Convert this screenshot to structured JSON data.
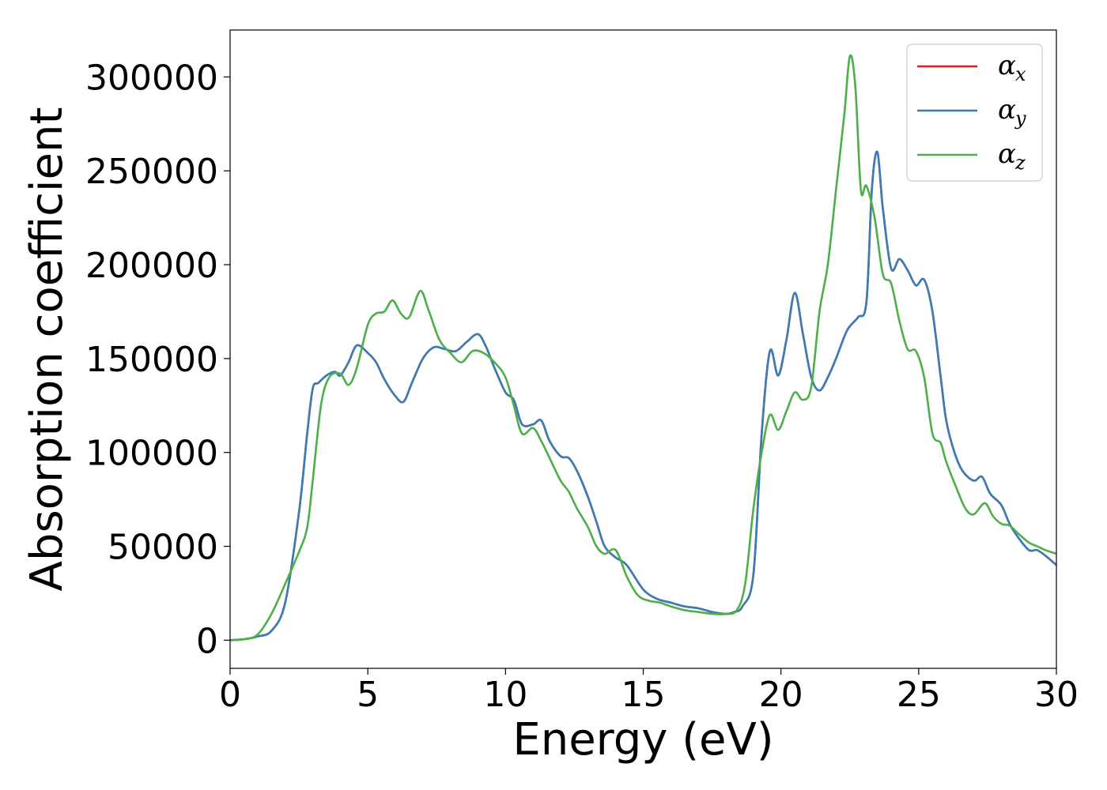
{
  "chart_data": {
    "type": "line",
    "title": "",
    "xlabel": "Energy (eV)",
    "ylabel": "Absorption coefficient",
    "xlim": [
      0,
      30
    ],
    "ylim": [
      -15000,
      325000
    ],
    "xticks": [
      0,
      5,
      10,
      15,
      20,
      25,
      30
    ],
    "xtick_labels": [
      "0",
      "5",
      "10",
      "15",
      "20",
      "25",
      "30"
    ],
    "yticks": [
      0,
      50000,
      100000,
      150000,
      200000,
      250000,
      300000
    ],
    "ytick_labels": [
      "0",
      "50000",
      "100000",
      "150000",
      "200000",
      "250000",
      "300000"
    ],
    "grid": false,
    "legend_position": "top-right",
    "series": [
      {
        "name": "α_x",
        "legend_base": "α",
        "legend_sub": "x",
        "color": "#e41a1c",
        "x": [
          0,
          0.5,
          1,
          1.5,
          2,
          2.5,
          2.8,
          3,
          3.2,
          3.5,
          3.8,
          4,
          4.3,
          4.6,
          5,
          5.3,
          5.6,
          6,
          6.3,
          6.6,
          7,
          7.4,
          7.8,
          8.2,
          8.6,
          9,
          9.3,
          9.6,
          10,
          10.3,
          10.6,
          11,
          11.3,
          11.6,
          12,
          12.3,
          12.6,
          13,
          13.3,
          13.6,
          14,
          14.4,
          15,
          15.5,
          16,
          16.5,
          17,
          17.5,
          18,
          18.3,
          18.6,
          19,
          19.3,
          19.6,
          19.9,
          20.2,
          20.5,
          20.8,
          21.1,
          21.4,
          21.7,
          22,
          22.4,
          22.8,
          23.1,
          23.3,
          23.5,
          23.7,
          24,
          24.3,
          24.6,
          24.9,
          25.2,
          25.5,
          25.8,
          26,
          26.3,
          26.6,
          27,
          27.3,
          27.6,
          28,
          28.3,
          28.6,
          29,
          29.3,
          29.6,
          30
        ],
        "y": [
          0,
          500,
          2000,
          5000,
          20000,
          68000,
          110000,
          134000,
          137000,
          141000,
          143000,
          141000,
          148000,
          157000,
          153000,
          148000,
          139000,
          130000,
          127000,
          137000,
          150000,
          156000,
          155000,
          154000,
          159000,
          163000,
          156000,
          145000,
          132000,
          128000,
          115000,
          115000,
          117000,
          106000,
          98000,
          97000,
          90000,
          76000,
          63000,
          50000,
          44000,
          40000,
          27000,
          22000,
          20000,
          18000,
          17000,
          15000,
          14000,
          15000,
          18000,
          35000,
          110000,
          154000,
          141000,
          160000,
          185000,
          163000,
          140000,
          133000,
          140000,
          150000,
          165000,
          172000,
          180000,
          240000,
          260000,
          230000,
          198000,
          203000,
          197000,
          189000,
          192000,
          175000,
          140000,
          117000,
          100000,
          90000,
          85000,
          87000,
          78000,
          72000,
          62000,
          55000,
          48000,
          48000,
          45000,
          40000
        ]
      },
      {
        "name": "α_y",
        "legend_base": "α",
        "legend_sub": "y",
        "color": "#377eb8",
        "x": [
          0,
          0.5,
          1,
          1.5,
          2,
          2.5,
          2.8,
          3,
          3.2,
          3.5,
          3.8,
          4,
          4.3,
          4.6,
          5,
          5.3,
          5.6,
          6,
          6.3,
          6.6,
          7,
          7.4,
          7.8,
          8.2,
          8.6,
          9,
          9.3,
          9.6,
          10,
          10.3,
          10.6,
          11,
          11.3,
          11.6,
          12,
          12.3,
          12.6,
          13,
          13.3,
          13.6,
          14,
          14.4,
          15,
          15.5,
          16,
          16.5,
          17,
          17.5,
          18,
          18.3,
          18.6,
          19,
          19.3,
          19.6,
          19.9,
          20.2,
          20.5,
          20.8,
          21.1,
          21.4,
          21.7,
          22,
          22.4,
          22.8,
          23.1,
          23.3,
          23.5,
          23.7,
          24,
          24.3,
          24.6,
          24.9,
          25.2,
          25.5,
          25.8,
          26,
          26.3,
          26.6,
          27,
          27.3,
          27.6,
          28,
          28.3,
          28.6,
          29,
          29.3,
          29.6,
          30
        ],
        "y": [
          0,
          500,
          2000,
          5000,
          20000,
          68000,
          110000,
          134000,
          137000,
          141000,
          143000,
          141000,
          148000,
          157000,
          153000,
          148000,
          139000,
          130000,
          127000,
          137000,
          150000,
          156000,
          155000,
          154000,
          159000,
          163000,
          156000,
          145000,
          132000,
          128000,
          115000,
          115000,
          117000,
          106000,
          98000,
          97000,
          90000,
          76000,
          63000,
          50000,
          44000,
          40000,
          27000,
          22000,
          20000,
          18000,
          17000,
          15000,
          14000,
          15000,
          18000,
          35000,
          110000,
          154000,
          141000,
          160000,
          185000,
          163000,
          140000,
          133000,
          140000,
          150000,
          165000,
          172000,
          180000,
          240000,
          260000,
          230000,
          198000,
          203000,
          197000,
          189000,
          192000,
          175000,
          140000,
          117000,
          100000,
          90000,
          85000,
          87000,
          78000,
          72000,
          62000,
          55000,
          48000,
          48000,
          45000,
          40000
        ]
      },
      {
        "name": "α_z",
        "legend_base": "α",
        "legend_sub": "z",
        "color": "#4daf4a",
        "x": [
          0,
          0.5,
          1,
          1.5,
          2,
          2.5,
          2.8,
          3,
          3.3,
          3.6,
          4,
          4.3,
          4.6,
          5,
          5.3,
          5.6,
          5.9,
          6.2,
          6.5,
          6.9,
          7.2,
          7.6,
          8,
          8.4,
          8.8,
          9.2,
          9.6,
          10,
          10.3,
          10.6,
          11,
          11.3,
          11.6,
          12,
          12.3,
          12.6,
          13,
          13.3,
          13.6,
          14,
          14.4,
          14.8,
          15.2,
          15.6,
          16,
          16.5,
          17,
          17.5,
          18,
          18.4,
          18.7,
          19,
          19.3,
          19.6,
          19.9,
          20.2,
          20.5,
          20.8,
          21.1,
          21.4,
          21.7,
          22,
          22.3,
          22.5,
          22.7,
          22.9,
          23.1,
          23.4,
          23.7,
          24,
          24.3,
          24.6,
          24.9,
          25.2,
          25.5,
          25.8,
          26,
          26.4,
          26.7,
          27,
          27.4,
          27.7,
          28,
          28.3,
          28.6,
          29,
          29.3,
          29.6,
          30
        ],
        "y": [
          0,
          500,
          3000,
          14000,
          30000,
          47000,
          60000,
          85000,
          125000,
          140000,
          142000,
          136000,
          145000,
          168000,
          174000,
          175000,
          181000,
          174000,
          172000,
          186000,
          176000,
          160000,
          153000,
          148000,
          154000,
          153000,
          148000,
          140000,
          125000,
          110000,
          113000,
          106000,
          97000,
          85000,
          79000,
          70000,
          60000,
          50000,
          46000,
          48000,
          34000,
          24000,
          21000,
          20000,
          18000,
          16000,
          15000,
          14000,
          14000,
          16000,
          30000,
          70000,
          100000,
          120000,
          112000,
          122000,
          132000,
          128000,
          135000,
          175000,
          200000,
          240000,
          280000,
          311000,
          295000,
          240000,
          242000,
          225000,
          195000,
          190000,
          170000,
          155000,
          154000,
          140000,
          110000,
          105000,
          95000,
          80000,
          70000,
          67000,
          73000,
          66000,
          62000,
          61000,
          57000,
          52000,
          50000,
          48000,
          46000
        ]
      }
    ]
  }
}
